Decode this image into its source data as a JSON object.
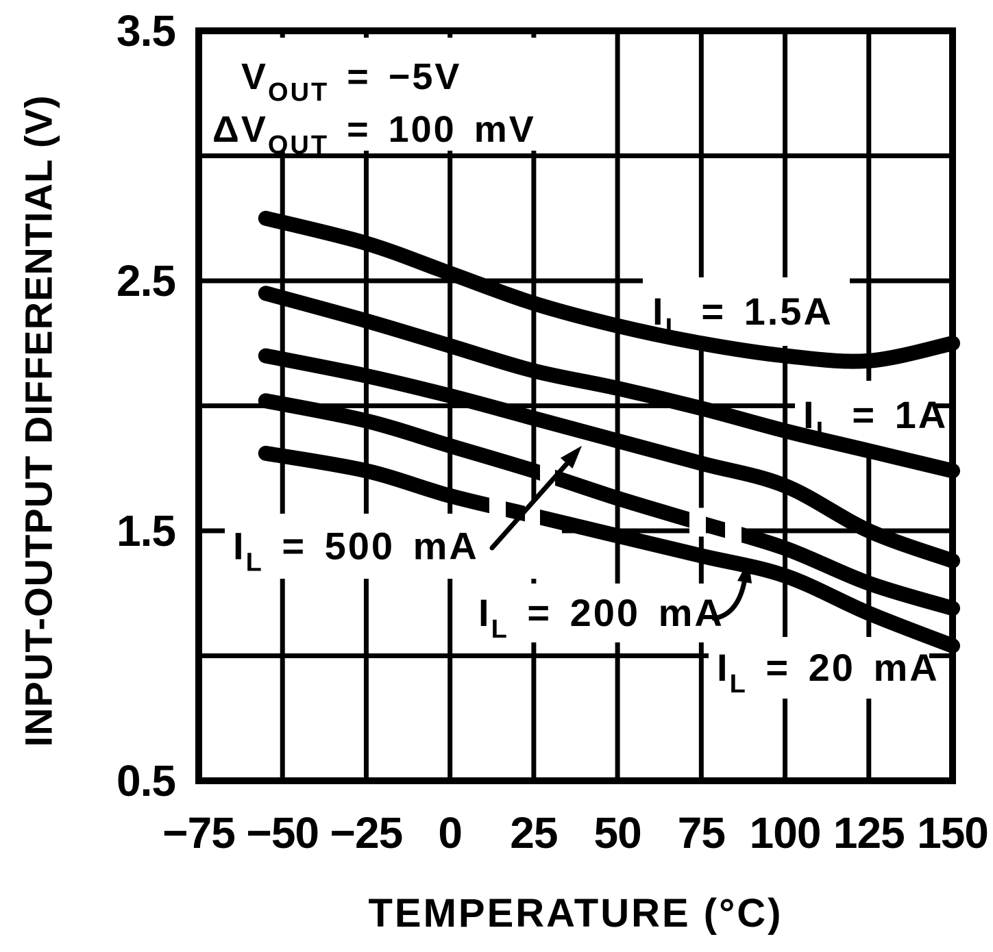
{
  "figure": {
    "background_color": "#ffffff",
    "ink_color": "#000000"
  },
  "axes": {
    "y_title": "INPUT-OUTPUT DIFFERENTIAL (V)",
    "x_title": "TEMPERATURE (°C)",
    "x_tick_labels": [
      "−75",
      "−50",
      "−25",
      "0",
      "25",
      "50",
      "75",
      "100",
      "125",
      "150"
    ],
    "y_tick_labels": [
      "3.5",
      "2.5",
      "1.5",
      "0.5"
    ]
  },
  "chart_data": {
    "type": "line",
    "title": "",
    "xlabel": "TEMPERATURE (°C)",
    "ylabel": "INPUT-OUTPUT DIFFERENTIAL (V)",
    "xlim": [
      -75,
      150
    ],
    "ylim": [
      0.5,
      3.5
    ],
    "grid": "on",
    "x_tick_values": [
      -75,
      -50,
      -25,
      0,
      25,
      50,
      75,
      100,
      125,
      150
    ],
    "x_tick_labels": [
      "−75",
      "−50",
      "−25",
      "0",
      "25",
      "50",
      "75",
      "100",
      "125",
      "150"
    ],
    "y_grid_step": 0.5,
    "y_labeled_ticks": [
      3.5,
      2.5,
      1.5,
      0.5
    ],
    "x": [
      -55,
      -25,
      0,
      25,
      50,
      75,
      100,
      125,
      150
    ],
    "series": [
      {
        "name": "IL = 1.5A",
        "label_parts": {
          "pre": "I",
          "sub": "L",
          "post": " = 1.5A"
        },
        "values": [
          2.75,
          2.65,
          2.53,
          2.41,
          2.32,
          2.25,
          2.2,
          2.18,
          2.25
        ]
      },
      {
        "name": "IL = 1A",
        "label_parts": {
          "pre": "I",
          "sub": "L",
          "post": " = 1A"
        },
        "values": [
          2.45,
          2.34,
          2.24,
          2.14,
          2.07,
          1.99,
          1.9,
          1.82,
          1.74
        ]
      },
      {
        "name": "IL = 500 mA",
        "label_parts": {
          "pre": "I",
          "sub": "L",
          "post": " = 500 mA"
        },
        "values": [
          2.2,
          2.12,
          2.04,
          1.95,
          1.86,
          1.77,
          1.68,
          1.5,
          1.38
        ]
      },
      {
        "name": "IL = 200 mA",
        "label_parts": {
          "pre": "I",
          "sub": "L",
          "post": " = 200 mA"
        },
        "values": [
          2.02,
          1.94,
          1.84,
          1.74,
          1.63,
          1.53,
          1.43,
          1.29,
          1.19
        ]
      },
      {
        "name": "IL = 20 mA",
        "label_parts": {
          "pre": "I",
          "sub": "L",
          "post": " = 20 mA"
        },
        "values": [
          1.81,
          1.74,
          1.64,
          1.56,
          1.48,
          1.4,
          1.32,
          1.17,
          1.04
        ]
      }
    ],
    "annotations": [
      {
        "parts": {
          "pre": "V",
          "sub": "OUT",
          "post": " = −5V"
        }
      },
      {
        "parts": {
          "pre": "ΔV",
          "sub": "OUT",
          "post": " = 100 mV"
        }
      }
    ]
  }
}
